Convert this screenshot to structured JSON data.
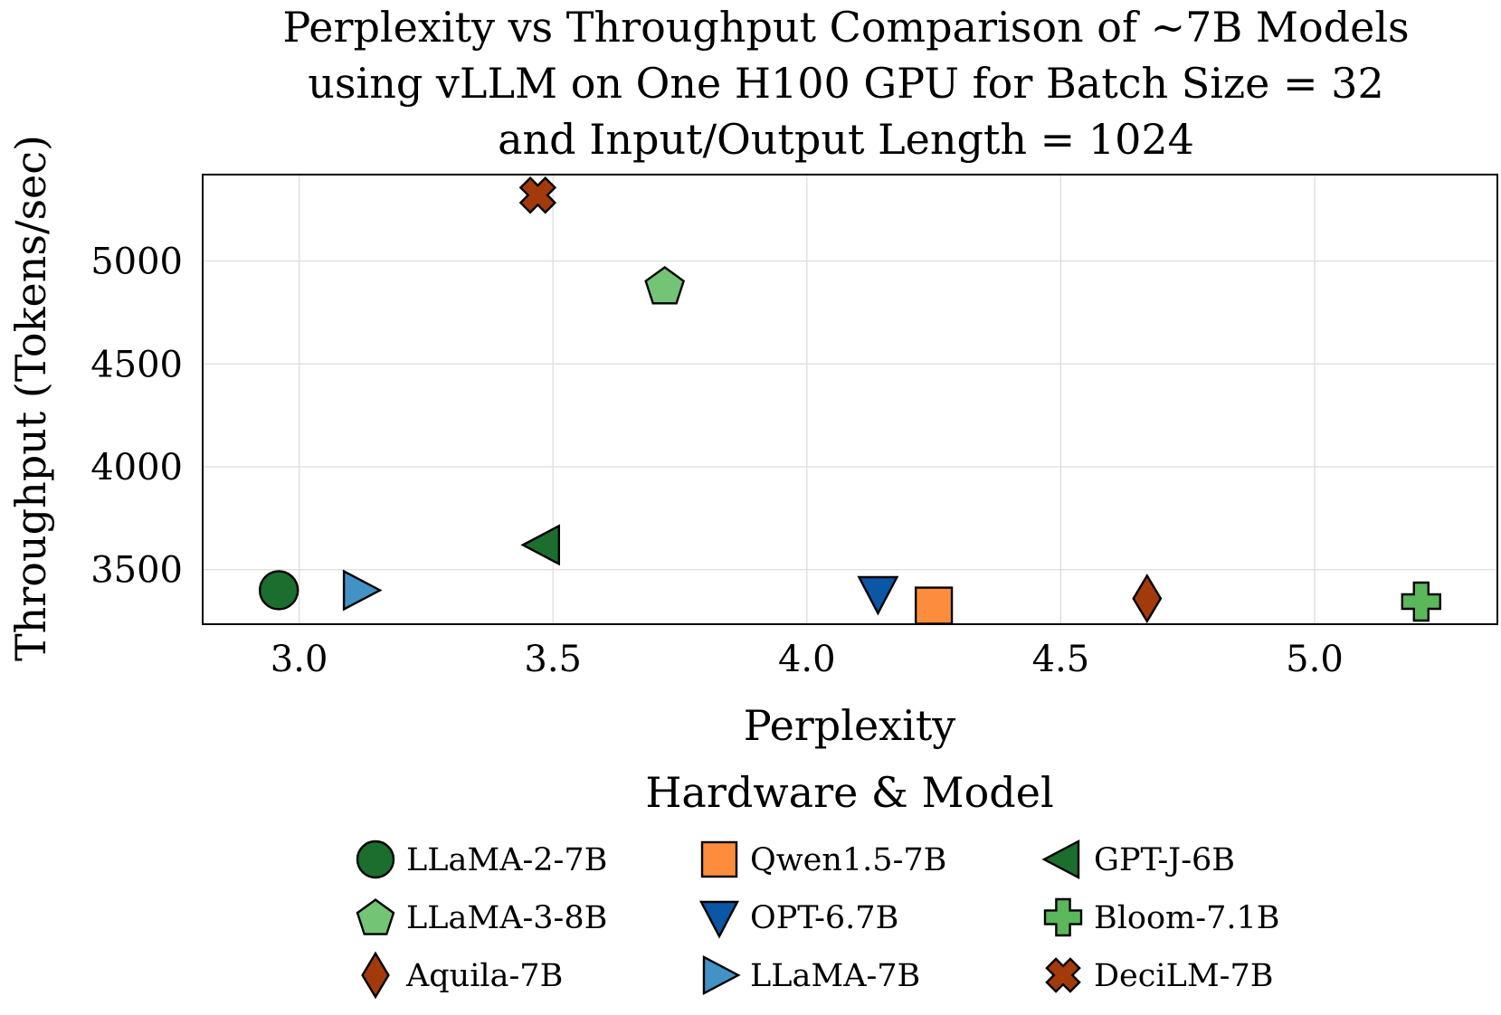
{
  "chart_data": {
    "type": "scatter",
    "title": [
      "Perplexity vs Throughput Comparison of ~7B Models",
      "using vLLM on One H100 GPU for Batch Size = 32",
      "and Input/Output Length = 1024"
    ],
    "xlabel": "Perplexity",
    "ylabel": "Throughput (Tokens/sec)",
    "xlim": [
      2.81,
      5.36
    ],
    "ylim": [
      3235,
      5420
    ],
    "xticks": [
      3.0,
      3.5,
      4.0,
      4.5,
      5.0
    ],
    "xtick_labels": [
      "3.0",
      "3.5",
      "4.0",
      "4.5",
      "5.0"
    ],
    "yticks": [
      3500,
      4000,
      4500,
      5000
    ],
    "ytick_labels": [
      "3500",
      "4000",
      "4500",
      "5000"
    ],
    "grid": true,
    "legend_title": "Hardware & Model",
    "legend_position": "bottom-center",
    "series": [
      {
        "name": "LLaMA-2-7B",
        "marker": "circle",
        "color": "#1b6e2e",
        "x": 2.96,
        "y": 3400
      },
      {
        "name": "LLaMA-3-8B",
        "marker": "pentagon",
        "color": "#74c476",
        "x": 3.72,
        "y": 4880
      },
      {
        "name": "Aquila-7B",
        "marker": "diamond",
        "color": "#a33a0c",
        "x": 4.67,
        "y": 3360
      },
      {
        "name": "Qwen1.5-7B",
        "marker": "square",
        "color": "#fd8d3c",
        "x": 4.25,
        "y": 3325
      },
      {
        "name": "OPT-6.7B",
        "marker": "triangle-down",
        "color": "#0b56a5",
        "x": 4.14,
        "y": 3385
      },
      {
        "name": "LLaMA-7B",
        "marker": "triangle-right",
        "color": "#4292c6",
        "x": 3.12,
        "y": 3400
      },
      {
        "name": "GPT-J-6B",
        "marker": "triangle-left",
        "color": "#1b6e2e",
        "x": 3.48,
        "y": 3620
      },
      {
        "name": "Bloom-7.1B",
        "marker": "plus",
        "color": "#5ab75a",
        "x": 5.21,
        "y": 3345
      },
      {
        "name": "DeciLM-7B",
        "marker": "x",
        "color": "#a33a0c",
        "x": 3.47,
        "y": 5320
      }
    ]
  }
}
